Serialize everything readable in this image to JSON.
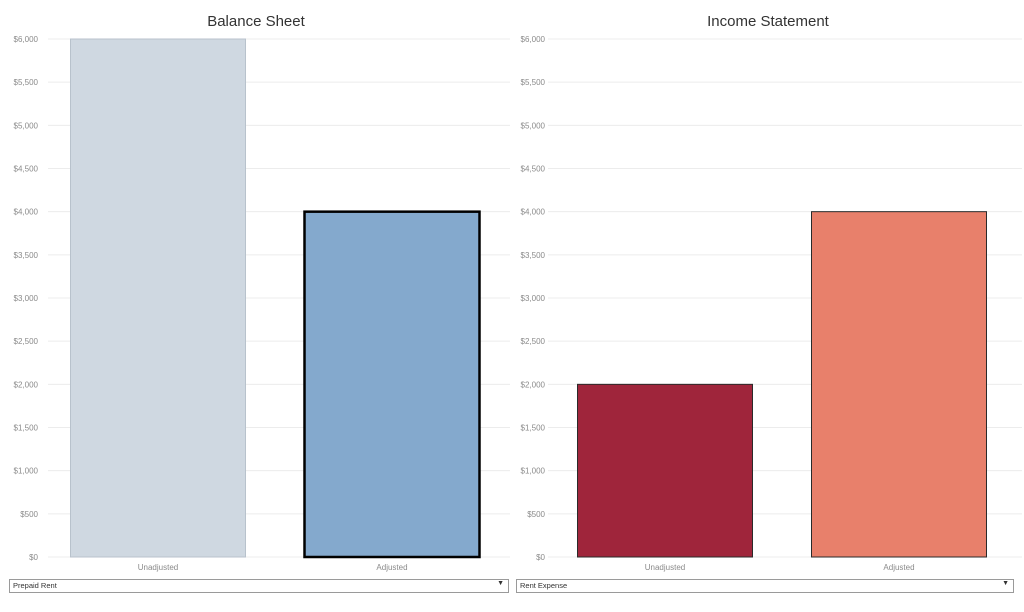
{
  "chart_data": [
    {
      "type": "bar",
      "title": "Balance Sheet",
      "categories": [
        "Unadjusted",
        "Adjusted"
      ],
      "values": [
        6000,
        4000
      ],
      "ylim": [
        0,
        6000
      ],
      "yticks": [
        "$0",
        "$500",
        "$1,000",
        "$1,500",
        "$2,000",
        "$2,500",
        "$3,000",
        "$3,500",
        "$4,000",
        "$4,500",
        "$5,000",
        "$5,500",
        "$6,000"
      ],
      "colors": [
        "#cfd8e1",
        "#84a9cd"
      ],
      "highlighted": [
        false,
        true
      ],
      "grid": true
    },
    {
      "type": "bar",
      "title": "Income Statement",
      "categories": [
        "Unadjusted",
        "Adjusted"
      ],
      "values": [
        2000,
        4000
      ],
      "ylim": [
        0,
        6000
      ],
      "yticks": [
        "$0",
        "$500",
        "$1,000",
        "$1,500",
        "$2,000",
        "$2,500",
        "$3,000",
        "$3,500",
        "$4,000",
        "$4,500",
        "$5,000",
        "$5,500",
        "$6,000"
      ],
      "colors": [
        "#9f253b",
        "#e8806b"
      ],
      "highlighted": [
        false,
        false
      ],
      "grid": true
    }
  ],
  "filters": {
    "left": {
      "selected": "Prepaid Rent",
      "icon": "triangle-down"
    },
    "right": {
      "selected": "Rent Expense",
      "icon": "triangle-down"
    }
  }
}
